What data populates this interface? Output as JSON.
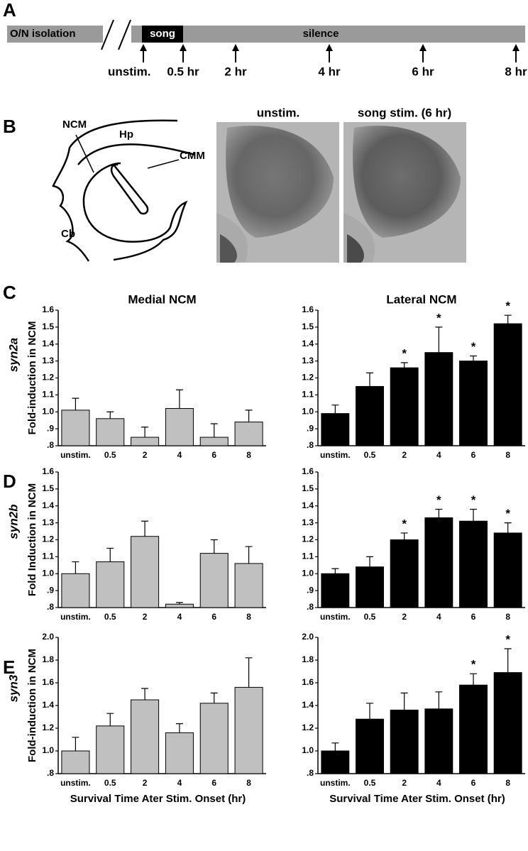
{
  "panel_letters": [
    "A",
    "B",
    "C",
    "D",
    "E"
  ],
  "timeline": {
    "bar_labels": [
      "O/N isolation",
      "song",
      "silence"
    ],
    "time_points": [
      "unstim.",
      "0.5 hr",
      "2 hr",
      "4 hr",
      "6 hr",
      "8 hr"
    ]
  },
  "anatomy": {
    "labels": [
      "NCM",
      "Hp",
      "CMM",
      "Cb"
    ],
    "image_titles": [
      "unstim.",
      "song stim. (6 hr)"
    ]
  },
  "genes": [
    "syn2a",
    "syn2b",
    "syn3"
  ],
  "chart_data": [
    {
      "type": "bar",
      "title": "Medial NCM",
      "ylabel": "Fold-induction in NCM",
      "categories": [
        "unstim.",
        "0.5",
        "2",
        "4",
        "6",
        "8"
      ],
      "values": [
        1.01,
        0.96,
        0.85,
        1.02,
        0.85,
        0.94
      ],
      "errors": [
        0.07,
        0.04,
        0.06,
        0.11,
        0.08,
        0.07
      ],
      "significance": [
        false,
        false,
        false,
        false,
        false,
        false
      ],
      "color": "#c0c0c0",
      "ylim": [
        0.8,
        1.6
      ],
      "yticks": [
        {
          "value": 0.8,
          "label": ".8"
        },
        {
          "value": 0.9,
          "label": ".9"
        },
        {
          "value": 1.0,
          "label": "1.0"
        },
        1.1,
        1.2,
        1.3,
        1.4,
        1.5,
        1.6
      ]
    },
    {
      "type": "bar",
      "title": "Lateral NCM",
      "categories": [
        "unstim.",
        "0.5",
        "2",
        "4",
        "6",
        "8"
      ],
      "values": [
        0.99,
        1.15,
        1.26,
        1.35,
        1.3,
        1.52
      ],
      "errors": [
        0.05,
        0.08,
        0.03,
        0.15,
        0.03,
        0.05
      ],
      "significance": [
        false,
        false,
        true,
        true,
        true,
        true
      ],
      "significance_marker": "*",
      "color": "#000000",
      "ylim": [
        0.8,
        1.6
      ],
      "yticks": [
        {
          "value": 0.8,
          "label": ".8"
        },
        {
          "value": 0.9,
          "label": ".9"
        },
        {
          "value": 1.0,
          "label": "1.0"
        },
        1.1,
        1.2,
        1.3,
        1.4,
        1.5,
        1.6
      ]
    },
    {
      "type": "bar",
      "ylabel": "Fold Induction in NCM",
      "categories": [
        "unstim.",
        "0.5",
        "2",
        "4",
        "6",
        "8"
      ],
      "values": [
        1.0,
        1.07,
        1.22,
        0.82,
        1.12,
        1.06
      ],
      "errors": [
        0.07,
        0.08,
        0.09,
        0.01,
        0.08,
        0.1
      ],
      "significance": [
        false,
        false,
        false,
        false,
        false,
        false
      ],
      "color": "#c0c0c0",
      "ylim": [
        0.8,
        1.6
      ],
      "yticks": [
        {
          "value": 0.8,
          "label": ".8"
        },
        {
          "value": 0.9,
          "label": ".9"
        },
        {
          "value": 1.0,
          "label": "1.0"
        },
        1.1,
        1.2,
        1.3,
        1.4,
        1.5,
        1.6
      ]
    },
    {
      "type": "bar",
      "categories": [
        "unstim.",
        "0.5",
        "2",
        "4",
        "6",
        "8"
      ],
      "values": [
        1.0,
        1.04,
        1.2,
        1.33,
        1.31,
        1.24
      ],
      "errors": [
        0.03,
        0.06,
        0.04,
        0.05,
        0.07,
        0.06
      ],
      "significance": [
        false,
        false,
        true,
        true,
        true,
        true
      ],
      "significance_marker": "*",
      "color": "#000000",
      "ylim": [
        0.8,
        1.6
      ],
      "yticks": [
        {
          "value": 0.8,
          "label": ".8"
        },
        {
          "value": 0.9,
          "label": ".9"
        },
        {
          "value": 1.0,
          "label": "1.0"
        },
        1.1,
        1.2,
        1.3,
        1.4,
        1.5,
        1.6
      ]
    },
    {
      "type": "bar",
      "ylabel": "Fold-induction in NCM",
      "xlabel": "Survival Time Ater Stim. Onset (hr)",
      "categories": [
        "unstim.",
        "0.5",
        "2",
        "4",
        "6",
        "8"
      ],
      "values": [
        1.0,
        1.22,
        1.45,
        1.16,
        1.42,
        1.56
      ],
      "errors": [
        0.12,
        0.11,
        0.1,
        0.08,
        0.09,
        0.26
      ],
      "significance": [
        false,
        false,
        false,
        false,
        false,
        false
      ],
      "color": "#c0c0c0",
      "ylim": [
        0.8,
        2.0
      ],
      "yticks": [
        {
          "value": 0.8,
          "label": ".8"
        },
        {
          "value": 1.0,
          "label": "1.0"
        },
        1.2,
        1.4,
        1.6,
        1.8,
        {
          "value": 2.0,
          "label": "2.0"
        }
      ]
    },
    {
      "type": "bar",
      "xlabel": "Survival Time Ater Stim. Onset (hr)",
      "categories": [
        "unstim.",
        "0.5",
        "2",
        "4",
        "6",
        "8"
      ],
      "values": [
        1.0,
        1.28,
        1.36,
        1.37,
        1.58,
        1.69
      ],
      "errors": [
        0.07,
        0.14,
        0.15,
        0.15,
        0.1,
        0.21
      ],
      "significance": [
        false,
        false,
        false,
        false,
        true,
        true
      ],
      "significance_marker": "*",
      "color": "#000000",
      "ylim": [
        0.8,
        2.0
      ],
      "yticks": [
        {
          "value": 0.8,
          "label": ".8"
        },
        {
          "value": 1.0,
          "label": "1.0"
        },
        1.2,
        1.4,
        1.6,
        1.8,
        {
          "value": 2.0,
          "label": "2.0"
        }
      ]
    }
  ]
}
